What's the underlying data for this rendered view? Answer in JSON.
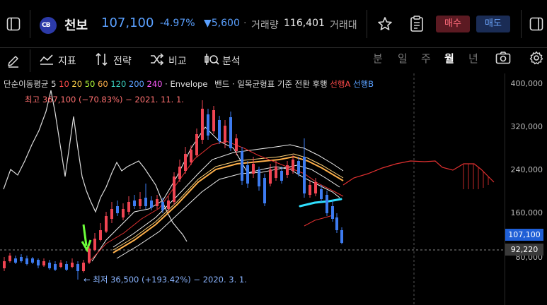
{
  "header": {
    "stock_name": "천보",
    "price": "107,100",
    "change_pct": "-4.97%",
    "change_abs": "▼5,600",
    "separator": "·",
    "volume_label": "거래량",
    "volume_value": "116,401",
    "amount_label": "거래대금",
    "logo_text": "CB",
    "buy_label": "매수",
    "sell_label": "매도"
  },
  "toolbar": {
    "indicator_label": "지표",
    "strategy_label": "전략",
    "compare_label": "비교",
    "analysis_label": "분석",
    "periods": [
      "분",
      "일",
      "주",
      "월",
      "년"
    ],
    "active_period": "월"
  },
  "indicators": {
    "ma_prefix": "단순이동평균",
    "ma5": "5",
    "ma10": "10",
    "ma20": "20",
    "ma50": "50",
    "ma60": "60",
    "ma120": "120",
    "ma200": "200",
    "ma240": "240",
    "envelope": "· Envelope",
    "band": "밴드 · 일목균형표 기준 전환 후행",
    "span_a": "선행A",
    "span_b": "선행B"
  },
  "annotations": {
    "high": "최고 367,100 (−70.83%) − 2021. 11. 1.",
    "low": "← 최저 36,500 (+193.42%) − 2020. 3. 1."
  },
  "price_axis": {
    "labels": [
      "400,000",
      "320,000",
      "240,000",
      "160,000",
      "80,000"
    ],
    "current_price_tag": "107,100",
    "crosshair_price_tag": "92,220"
  },
  "colors": {
    "up": "#f04452",
    "down": "#3d7bf0",
    "accent_blue": "#5aa0ff",
    "buy_bg": "#5c1a22",
    "sell_bg": "#1a2c55"
  }
}
